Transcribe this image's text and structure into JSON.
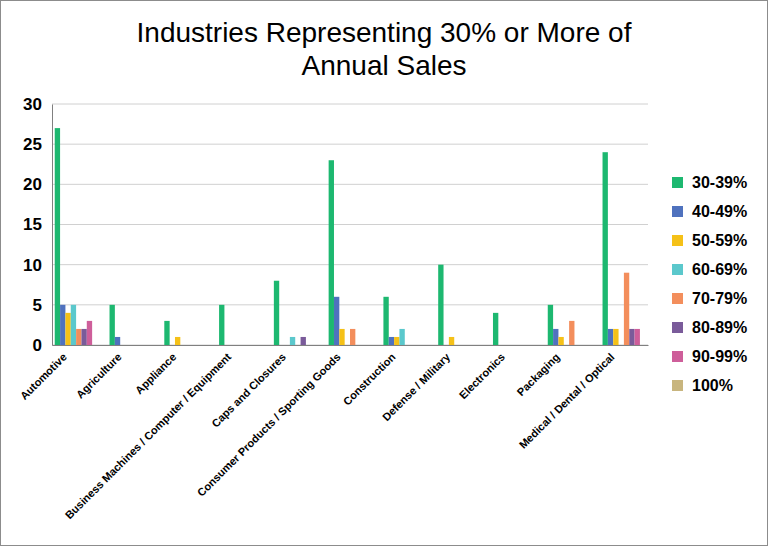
{
  "chart_data": {
    "type": "bar",
    "title": "Industries Representing 30% or More of Annual Sales",
    "categories": [
      "Automotive",
      "Agriculture",
      "Appliance",
      "Business Machines / Computer / Equipment",
      "Caps and Closures",
      "Consumer Products / Sporting Goods",
      "Construction",
      "Defense / Military",
      "Electronics",
      "Packaging",
      "Medical / Dental / Optical"
    ],
    "series": [
      {
        "name": "30-39%",
        "color": "#1DB870",
        "values": [
          27,
          5,
          3,
          5,
          8,
          23,
          6,
          10,
          4,
          5,
          24
        ]
      },
      {
        "name": "40-49%",
        "color": "#4F72BE",
        "values": [
          5,
          1,
          0,
          0,
          0,
          6,
          1,
          0,
          0,
          2,
          2
        ]
      },
      {
        "name": "50-59%",
        "color": "#F5C118",
        "values": [
          4,
          0,
          1,
          0,
          0,
          2,
          1,
          1,
          0,
          1,
          2
        ]
      },
      {
        "name": "60-69%",
        "color": "#5BC8CC",
        "values": [
          5,
          0,
          0,
          0,
          1,
          0,
          2,
          0,
          0,
          0,
          0
        ]
      },
      {
        "name": "70-79%",
        "color": "#F38E5C",
        "values": [
          2,
          0,
          0,
          0,
          0,
          2,
          0,
          0,
          0,
          3,
          9
        ]
      },
      {
        "name": "80-89%",
        "color": "#7A5B9A",
        "values": [
          2,
          0,
          0,
          0,
          1,
          0,
          0,
          0,
          0,
          0,
          2
        ]
      },
      {
        "name": "90-99%",
        "color": "#CE5E9A",
        "values": [
          3,
          0,
          0,
          0,
          0,
          0,
          0,
          0,
          0,
          0,
          2
        ]
      },
      {
        "name": "100%",
        "color": "#C8B57E",
        "values": [
          0,
          0,
          0,
          0,
          0,
          0,
          0,
          0,
          0,
          0,
          0
        ]
      }
    ],
    "ylim": [
      0,
      30
    ],
    "yticks": [
      0,
      5,
      10,
      15,
      20,
      25,
      30
    ],
    "grid": true,
    "legend": "right"
  }
}
